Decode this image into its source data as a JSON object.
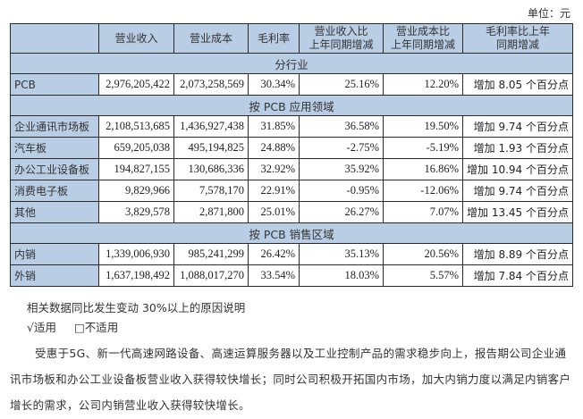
{
  "unit_label": "单位：元",
  "table": {
    "headers": [
      "",
      "营业收入",
      "营业成本",
      "毛利率",
      "营业收入比\n上年同期增减",
      "营业成本比\n上年同期增减",
      "毛利率比上年\n同期增减"
    ],
    "header_lines": [
      [
        ""
      ],
      [
        "营业收入"
      ],
      [
        "营业成本"
      ],
      [
        "毛利率"
      ],
      [
        "营业收入比",
        "上年同期增减"
      ],
      [
        "营业成本比",
        "上年同期增减"
      ],
      [
        "毛利率比上年",
        "同期增减"
      ]
    ],
    "sections": [
      {
        "title": "分行业",
        "rows": [
          {
            "label": "PCB",
            "revenue": "2,976,205,422",
            "cost": "2,073,258,569",
            "gross_margin": "30.34%",
            "revenue_yoy": "25.16%",
            "cost_yoy": "12.20%",
            "gm_yoy": "增加 8.05 个百分点"
          }
        ]
      },
      {
        "title": "按 PCB 应用领域",
        "rows": [
          {
            "label": "企业通讯市场板",
            "revenue": "2,108,513,685",
            "cost": "1,436,927,438",
            "gross_margin": "31.85%",
            "revenue_yoy": "36.58%",
            "cost_yoy": "19.50%",
            "gm_yoy": "增加 9.74 个百分点"
          },
          {
            "label": "汽车板",
            "revenue": "659,205,038",
            "cost": "495,194,825",
            "gross_margin": "24.88%",
            "revenue_yoy": "-2.75%",
            "cost_yoy": "-5.19%",
            "gm_yoy": "增加 1.93 个百分点"
          },
          {
            "label": "办公工业设备板",
            "revenue": "194,827,155",
            "cost": "130,686,336",
            "gross_margin": "32.92%",
            "revenue_yoy": "35.92%",
            "cost_yoy": "16.86%",
            "gm_yoy": "增加 10.94 个百分点"
          },
          {
            "label": "消费电子板",
            "revenue": "9,829,966",
            "cost": "7,578,170",
            "gross_margin": "22.91%",
            "revenue_yoy": "-0.95%",
            "cost_yoy": "-12.06%",
            "gm_yoy": "增加 9.74 个百分点"
          },
          {
            "label": "其他",
            "revenue": "3,829,578",
            "cost": "2,871,800",
            "gross_margin": "25.01%",
            "revenue_yoy": "26.27%",
            "cost_yoy": "7.07%",
            "gm_yoy": "增加 13.45 个百分点"
          }
        ]
      },
      {
        "title": "按 PCB 销售区域",
        "rows": [
          {
            "label": "内销",
            "revenue": "1,339,006,930",
            "cost": "985,241,299",
            "gross_margin": "26.42%",
            "revenue_yoy": "35.13%",
            "cost_yoy": "20.56%",
            "gm_yoy": "增加 8.89 个百分点"
          },
          {
            "label": "外销",
            "revenue": "1,637,198,492",
            "cost": "1,088,017,270",
            "gross_margin": "33.54%",
            "revenue_yoy": "18.03%",
            "cost_yoy": "5.57%",
            "gm_yoy": "增加 7.84 个百分点"
          }
        ]
      }
    ]
  },
  "notes": {
    "reason_title": "相关数据同比发生变动 30%以上的原因说明",
    "applicable": "√适用",
    "not_applicable": "□不适用",
    "paragraph": "受惠于5G、新一代高速网路设备、高速运算服务器以及工业控制产品的需求稳步向上，报告期公司企业通讯市场板和办公工业设备板营业收入获得较快增长；同时公司积极开拓国内市场，加大内销力度以满足内销客户增长的需求，公司内销营业收入获得较快增长。"
  },
  "colors": {
    "header_bg": "#b9cde5",
    "border": "#2a2a2a"
  }
}
